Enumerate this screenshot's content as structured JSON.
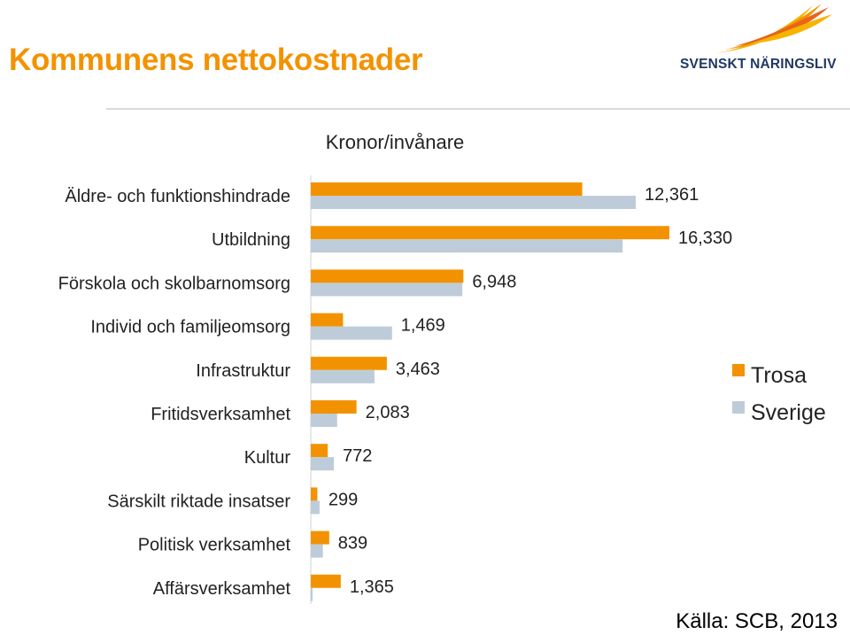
{
  "header": {
    "title": "Kommunens nettokostnader",
    "logo_text": "SVENSKT NÄRINGSLIV"
  },
  "source": "Källa: SCB, 2013",
  "colors": {
    "accent": "#f39200",
    "trosa": "#f39200",
    "sverige": "#bdccd8",
    "logo_navy": "#1f3864"
  },
  "chart_data": {
    "type": "bar",
    "orientation": "horizontal",
    "xlabel": "Kronor/invånare",
    "categories": [
      "Äldre- och funktionshindrade",
      "Utbildning",
      "Förskola och skolbarnomsorg",
      "Individ och familjeomsorg",
      "Infrastruktur",
      "Fritidsverksamhet",
      "Kultur",
      "Särskilt riktade insatser",
      "Politisk verksamhet",
      "Affärsverksamhet"
    ],
    "series": [
      {
        "name": "Trosa",
        "color": "#f39200",
        "values": [
          12361,
          16330,
          6948,
          1469,
          3463,
          2083,
          772,
          299,
          839,
          1365
        ],
        "labels": [
          "12,361",
          "16,330",
          "6,948",
          "1,469",
          "3,463",
          "2,083",
          "772",
          "299",
          "839",
          "1,365"
        ]
      },
      {
        "name": "Sverige",
        "color": "#bdccd8",
        "values": [
          14800,
          14200,
          6900,
          3700,
          2900,
          1200,
          1050,
          400,
          550,
          80
        ]
      }
    ],
    "xlim": [
      0,
      17000
    ],
    "legend_position": "right",
    "grid": false
  }
}
